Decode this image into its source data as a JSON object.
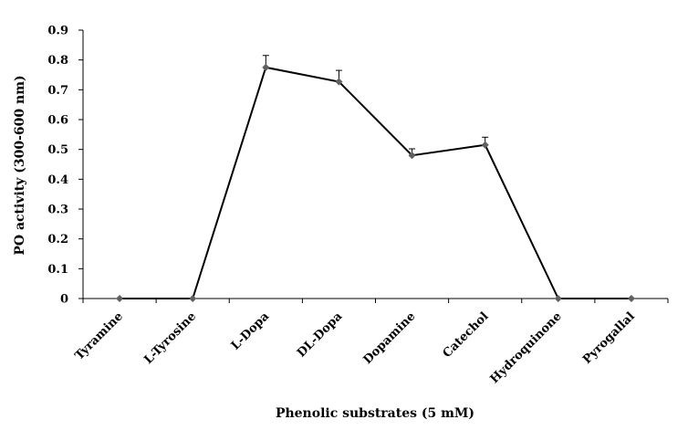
{
  "chart_data": {
    "type": "line",
    "categories": [
      "Tyramine",
      "L-Tyrosine",
      "L-Dopa",
      "DL-Dopa",
      "Dopamine",
      "Catechol",
      "Hydroquinone",
      "Pyrogallal"
    ],
    "series": [
      {
        "values": [
          0,
          0,
          0.775,
          0.727,
          0.48,
          0.515,
          0,
          0
        ],
        "error": [
          0,
          0,
          0.04,
          0.038,
          0.022,
          0.026,
          0,
          0
        ]
      }
    ],
    "xlabel": "Phenolic substrates (5 mM)",
    "ylabel": "PO activity (300-600 nm)",
    "ylim": [
      0,
      0.9
    ],
    "yticks": [
      "0",
      "0.1",
      "0.2",
      "0.3",
      "0.4",
      "0.5",
      "0.6",
      "0.7",
      "0.8",
      "0.9"
    ],
    "grid": false,
    "legend": "none",
    "colors": {
      "line": "#000000",
      "marker": "#606060",
      "axis": "#000000"
    }
  }
}
